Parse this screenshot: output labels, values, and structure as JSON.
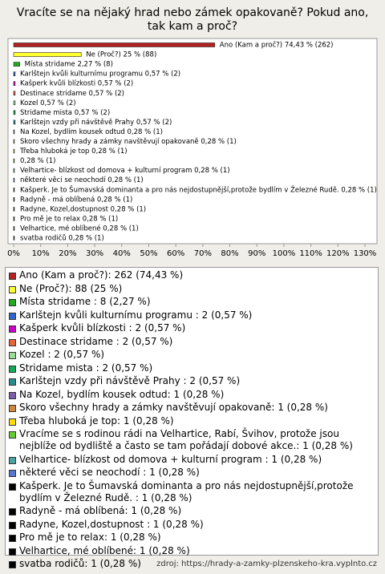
{
  "chart_data": {
    "type": "hbar",
    "title": "Vracíte se na nějaký hrad nebo zámek opakovaně? Pokud ano, tak kam a proč?",
    "values": [
      74.43,
      25,
      2.27,
      0.57,
      0.57,
      0.57,
      0.57,
      0.57,
      0.57,
      0.28,
      0.28,
      0.28,
      0.28,
      0.28,
      0.28,
      0.28,
      0.28,
      0.28,
      0.28,
      0.28,
      0.28
    ],
    "value_labels": [
      "Ano (Kam a proč?) 74,43 % (262)",
      "Ne (Proč?) 25 % (88)",
      "Místa stridame  2,27 % (8)",
      "Karlštejn kvůli kulturnímu programu  0,57 % (2)",
      "Kašperk kvůli blízkosti  0,57 % (2)",
      "Destinace stridame  0,57 % (2)",
      "Kozel  0,57 % (2)",
      "Stridame mista  0,57 % (2)",
      "Karlštejn vzdy při návštěvě Prahy  0,57 % (2)",
      "Na Kozel, bydlím kousek odtud 0,28 % (1)",
      "Skoro  všechny hrady a zámky navštěvují opakovaně 0,28 % (1)",
      "Třeba hluboká je top 0,28 % (1)",
      "0,28 % (1)",
      "Velhartice- blízkost od domova + kulturní program  0,28 % (1)",
      "některé věci se neochodí  0,28 % (1)",
      "Kašperk. Je to Šumavská dominanta a pro nás nejdostupnější,protože bydlím v Železné Rudě.  0,28 % (1)",
      "Radyně - má oblíbená 0,28 % (1)",
      "Radyne, Kozel,dostupnost 0,28 % (1)",
      "Pro mě je to relax 0,28 % (1)",
      "Velhartice, mé oblíbené 0,28 % (1)",
      "svatba rodičů 0,28 % (1)"
    ],
    "colors": [
      "#b22222",
      "#ffff33",
      "#22aa22",
      "#3366cc",
      "#cc00cc",
      "#e8643c",
      "#99dd99",
      "#11aa55",
      "#2a8c8c",
      "#7b5ea7",
      "#cc8844",
      "#ffdd00",
      "#66cc33",
      "#4aa3a3",
      "#5577cc",
      "#000000",
      "#000000",
      "#000000",
      "#000000",
      "#000000",
      "#000000"
    ],
    "legend": [
      "Ano (Kam a proč?): 262 (74,43 %)",
      "Ne (Proč?): 88 (25 %)",
      "Místa stridame : 8 (2,27 %)",
      "Karlštejn kvůli kulturnímu programu : 2 (0,57 %)",
      "Kašperk kvůli blízkosti : 2 (0,57 %)",
      "Destinace stridame : 2 (0,57 %)",
      "Kozel : 2 (0,57 %)",
      "Stridame mista : 2 (0,57 %)",
      "Karlštejn vzdy při návštěvě Prahy : 2 (0,57 %)",
      "Na Kozel, bydlím kousek odtud: 1 (0,28 %)",
      "Skoro  všechny hrady a zámky navštěvují opakovaně: 1 (0,28 %)",
      "Třeba hluboká je top: 1 (0,28 %)",
      "Vracíme se s rodinou rádi na Velhartice, Rabí, Švihov, protože jsou nejblíže od bydliště a často se tam pořádají dobové akce.: 1 (0,28 %)",
      "Velhartice- blízkost od domova + kulturní program : 1 (0,28 %)",
      "některé věci se neochodí : 1 (0,28 %)",
      "Kašperk. Je to Šumavská dominanta a pro nás nejdostupnější,protože bydlím v Železné Rudě. : 1 (0,28 %)",
      "Radyně - má oblíbená: 1 (0,28 %)",
      "Radyne, Kozel,dostupnost : 1 (0,28 %)",
      "Pro mě je to relax: 1 (0,28 %)",
      "Velhartice, mé oblíbené: 1 (0,28 %)",
      "svatba rodičů: 1 (0,28 %)"
    ],
    "xlim": [
      0,
      130
    ],
    "xticks": [
      {
        "value": 0,
        "label": "0%"
      },
      {
        "value": 10,
        "label": "10%"
      },
      {
        "value": 20,
        "label": "20%"
      },
      {
        "value": 30,
        "label": "30%"
      },
      {
        "value": 40,
        "label": "40%"
      },
      {
        "value": 50,
        "label": "50%"
      },
      {
        "value": 60,
        "label": "60%"
      },
      {
        "value": 70,
        "label": "70%"
      },
      {
        "value": 80,
        "label": "80%"
      },
      {
        "value": 90,
        "label": "90%"
      },
      {
        "value": 100,
        "label": "100%"
      },
      {
        "value": 110,
        "label": "110%"
      },
      {
        "value": 120,
        "label": "120%"
      },
      {
        "value": 130,
        "label": "130%"
      }
    ],
    "source": "zdroj: https://hrady-a-zamky-plzenskeho-kra.vyplnto.cz"
  }
}
